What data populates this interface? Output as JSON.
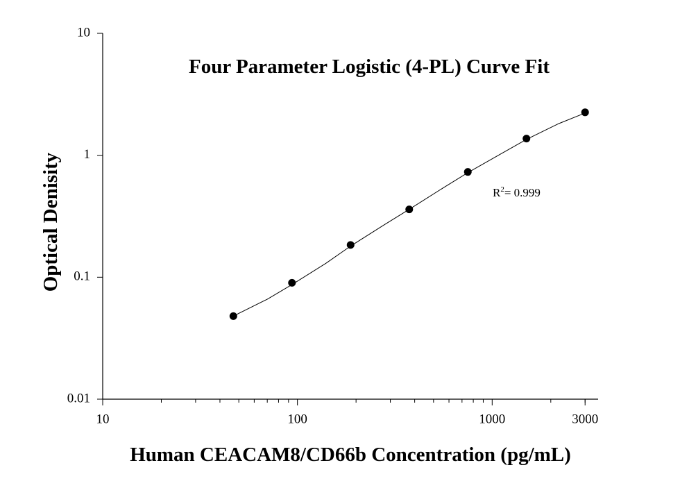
{
  "chart_data": {
    "type": "scatter",
    "title": "Four Parameter Logistic (4-PL) Curve Fit",
    "x_label": "Human CEACAM8/CD66b Concentration (pg/mL)",
    "y_label": "Optical Denisity",
    "annotation": {
      "text": "R",
      "superscript": "2",
      "rest": "= 0.999"
    },
    "xscale": "log",
    "yscale": "log",
    "xlim": [
      10,
      3500
    ],
    "ylim": [
      0.01,
      10
    ],
    "xticks": [
      10,
      100,
      1000,
      3000
    ],
    "xminorticks": [
      20,
      30,
      40,
      50,
      60,
      70,
      80,
      90,
      200,
      300,
      400,
      500,
      600,
      700,
      800,
      900,
      2000,
      3000
    ],
    "yticks": [
      0.01,
      0.1,
      1,
      10
    ],
    "series": [
      {
        "mode": "markers",
        "color": "#000000",
        "x": [
          46.875,
          93.75,
          187.5,
          375,
          750,
          1500,
          3000
        ],
        "values": [
          0.048,
          0.09,
          0.184,
          0.36,
          0.73,
          1.37,
          2.25
        ]
      },
      {
        "mode": "line",
        "color": "#000000",
        "x": [
          46.875,
          70,
          93.75,
          140,
          187.5,
          280,
          375,
          560,
          750,
          1100,
          1500,
          2200,
          3000
        ],
        "values": [
          0.048,
          0.066,
          0.087,
          0.13,
          0.18,
          0.27,
          0.36,
          0.54,
          0.72,
          1.02,
          1.35,
          1.82,
          2.22
        ]
      }
    ]
  }
}
